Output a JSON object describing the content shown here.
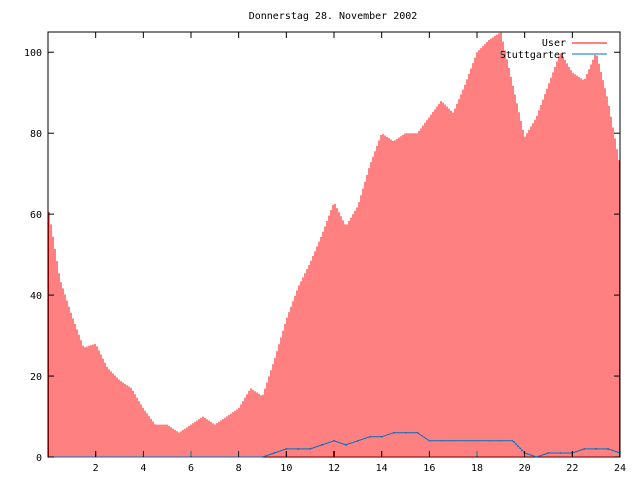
{
  "chart_data": {
    "type": "bar",
    "title": "Donnerstag 28. November 2002",
    "xlabel": "",
    "ylabel": "",
    "xlim": [
      0,
      24
    ],
    "ylim": [
      0,
      105
    ],
    "x_ticks": [
      2,
      4,
      6,
      8,
      10,
      12,
      14,
      16,
      18,
      20,
      22,
      24
    ],
    "y_ticks": [
      0,
      20,
      40,
      60,
      80,
      100
    ],
    "grid": false,
    "legend_position": "top-right",
    "series": [
      {
        "name": "User",
        "style": "impulses",
        "color": "#ff0000",
        "points": [
          [
            0,
            62
          ],
          [
            0.5,
            44
          ],
          [
            1,
            35
          ],
          [
            1.5,
            27
          ],
          [
            2,
            28
          ],
          [
            2.5,
            22
          ],
          [
            3,
            19
          ],
          [
            3.5,
            17
          ],
          [
            4,
            12
          ],
          [
            4.5,
            8
          ],
          [
            5,
            8
          ],
          [
            5.5,
            6
          ],
          [
            6,
            8
          ],
          [
            6.5,
            10
          ],
          [
            7,
            8
          ],
          [
            7.5,
            10
          ],
          [
            8,
            12
          ],
          [
            8.5,
            17
          ],
          [
            9,
            15
          ],
          [
            9.5,
            24
          ],
          [
            10,
            34
          ],
          [
            10.5,
            42
          ],
          [
            11,
            48
          ],
          [
            11.5,
            55
          ],
          [
            12,
            63
          ],
          [
            12.5,
            57
          ],
          [
            13,
            62
          ],
          [
            13.5,
            72
          ],
          [
            14,
            80
          ],
          [
            14.5,
            78
          ],
          [
            15,
            80
          ],
          [
            15.5,
            80
          ],
          [
            16,
            84
          ],
          [
            16.5,
            88
          ],
          [
            17,
            85
          ],
          [
            17.5,
            92
          ],
          [
            18,
            100
          ],
          [
            18.5,
            103
          ],
          [
            19,
            105
          ],
          [
            19.5,
            92
          ],
          [
            20,
            79
          ],
          [
            20.5,
            84
          ],
          [
            21,
            92
          ],
          [
            21.5,
            100
          ],
          [
            22,
            95
          ],
          [
            22.5,
            93
          ],
          [
            23,
            100
          ],
          [
            23.5,
            88
          ],
          [
            24,
            72
          ]
        ]
      },
      {
        "name": "Stuttgarter",
        "style": "line",
        "color": "#0070c0",
        "points": [
          [
            0,
            0
          ],
          [
            9,
            0
          ],
          [
            9.5,
            1
          ],
          [
            10,
            2
          ],
          [
            10.5,
            2
          ],
          [
            11,
            2
          ],
          [
            11.5,
            3
          ],
          [
            12,
            4
          ],
          [
            12.5,
            3
          ],
          [
            13,
            4
          ],
          [
            13.5,
            5
          ],
          [
            14,
            5
          ],
          [
            14.5,
            6
          ],
          [
            15,
            6
          ],
          [
            15.5,
            6
          ],
          [
            16,
            4
          ],
          [
            16.5,
            4
          ],
          [
            17,
            4
          ],
          [
            17.5,
            4
          ],
          [
            18,
            4
          ],
          [
            18.5,
            4
          ],
          [
            19,
            4
          ],
          [
            19.5,
            4
          ],
          [
            20,
            1
          ],
          [
            20.5,
            0
          ],
          [
            21,
            1
          ],
          [
            21.5,
            1
          ],
          [
            22,
            1
          ],
          [
            22.5,
            2
          ],
          [
            23,
            2
          ],
          [
            23.5,
            2
          ],
          [
            24,
            1
          ]
        ]
      }
    ]
  }
}
